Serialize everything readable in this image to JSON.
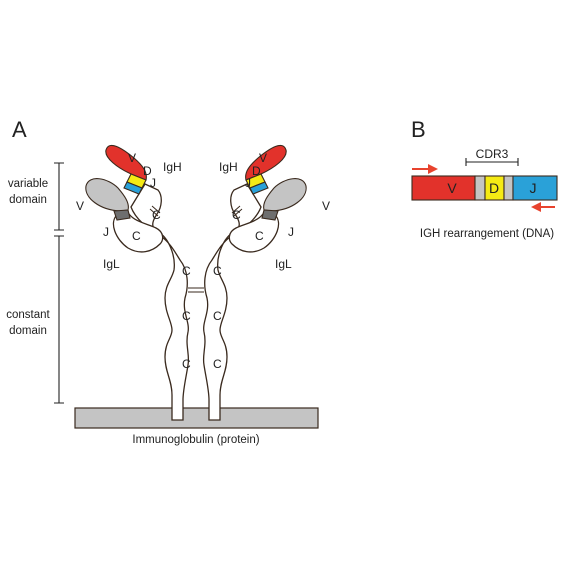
{
  "panel_a": {
    "letter": "A",
    "bracket_variable": "variable domain",
    "bracket_variable_line1": "variable",
    "bracket_variable_line2": "domain",
    "bracket_constant_line1": "constant",
    "bracket_constant_line2": "domain",
    "heavy_chain_label": "IgH",
    "light_chain_label": "IgL",
    "v_label": "V",
    "d_label": "D",
    "j_label": "J",
    "c_label": "C",
    "caption": "Immunoglobulin (protein)"
  },
  "panel_b": {
    "letter": "B",
    "cdr3_label": "CDR3",
    "v_segment": "V",
    "d_segment": "D",
    "j_segment": "J",
    "caption": "IGH rearrangement (DNA)"
  },
  "colors": {
    "v_heavy": "#e2322b",
    "v_light": "#c4c4c4",
    "d_segment": "#f5ea14",
    "j_heavy": "#2aa1d8",
    "j_light": "#6e6e6e",
    "membrane": "#c4c4c4",
    "primer_arrow": "#e8432e"
  }
}
